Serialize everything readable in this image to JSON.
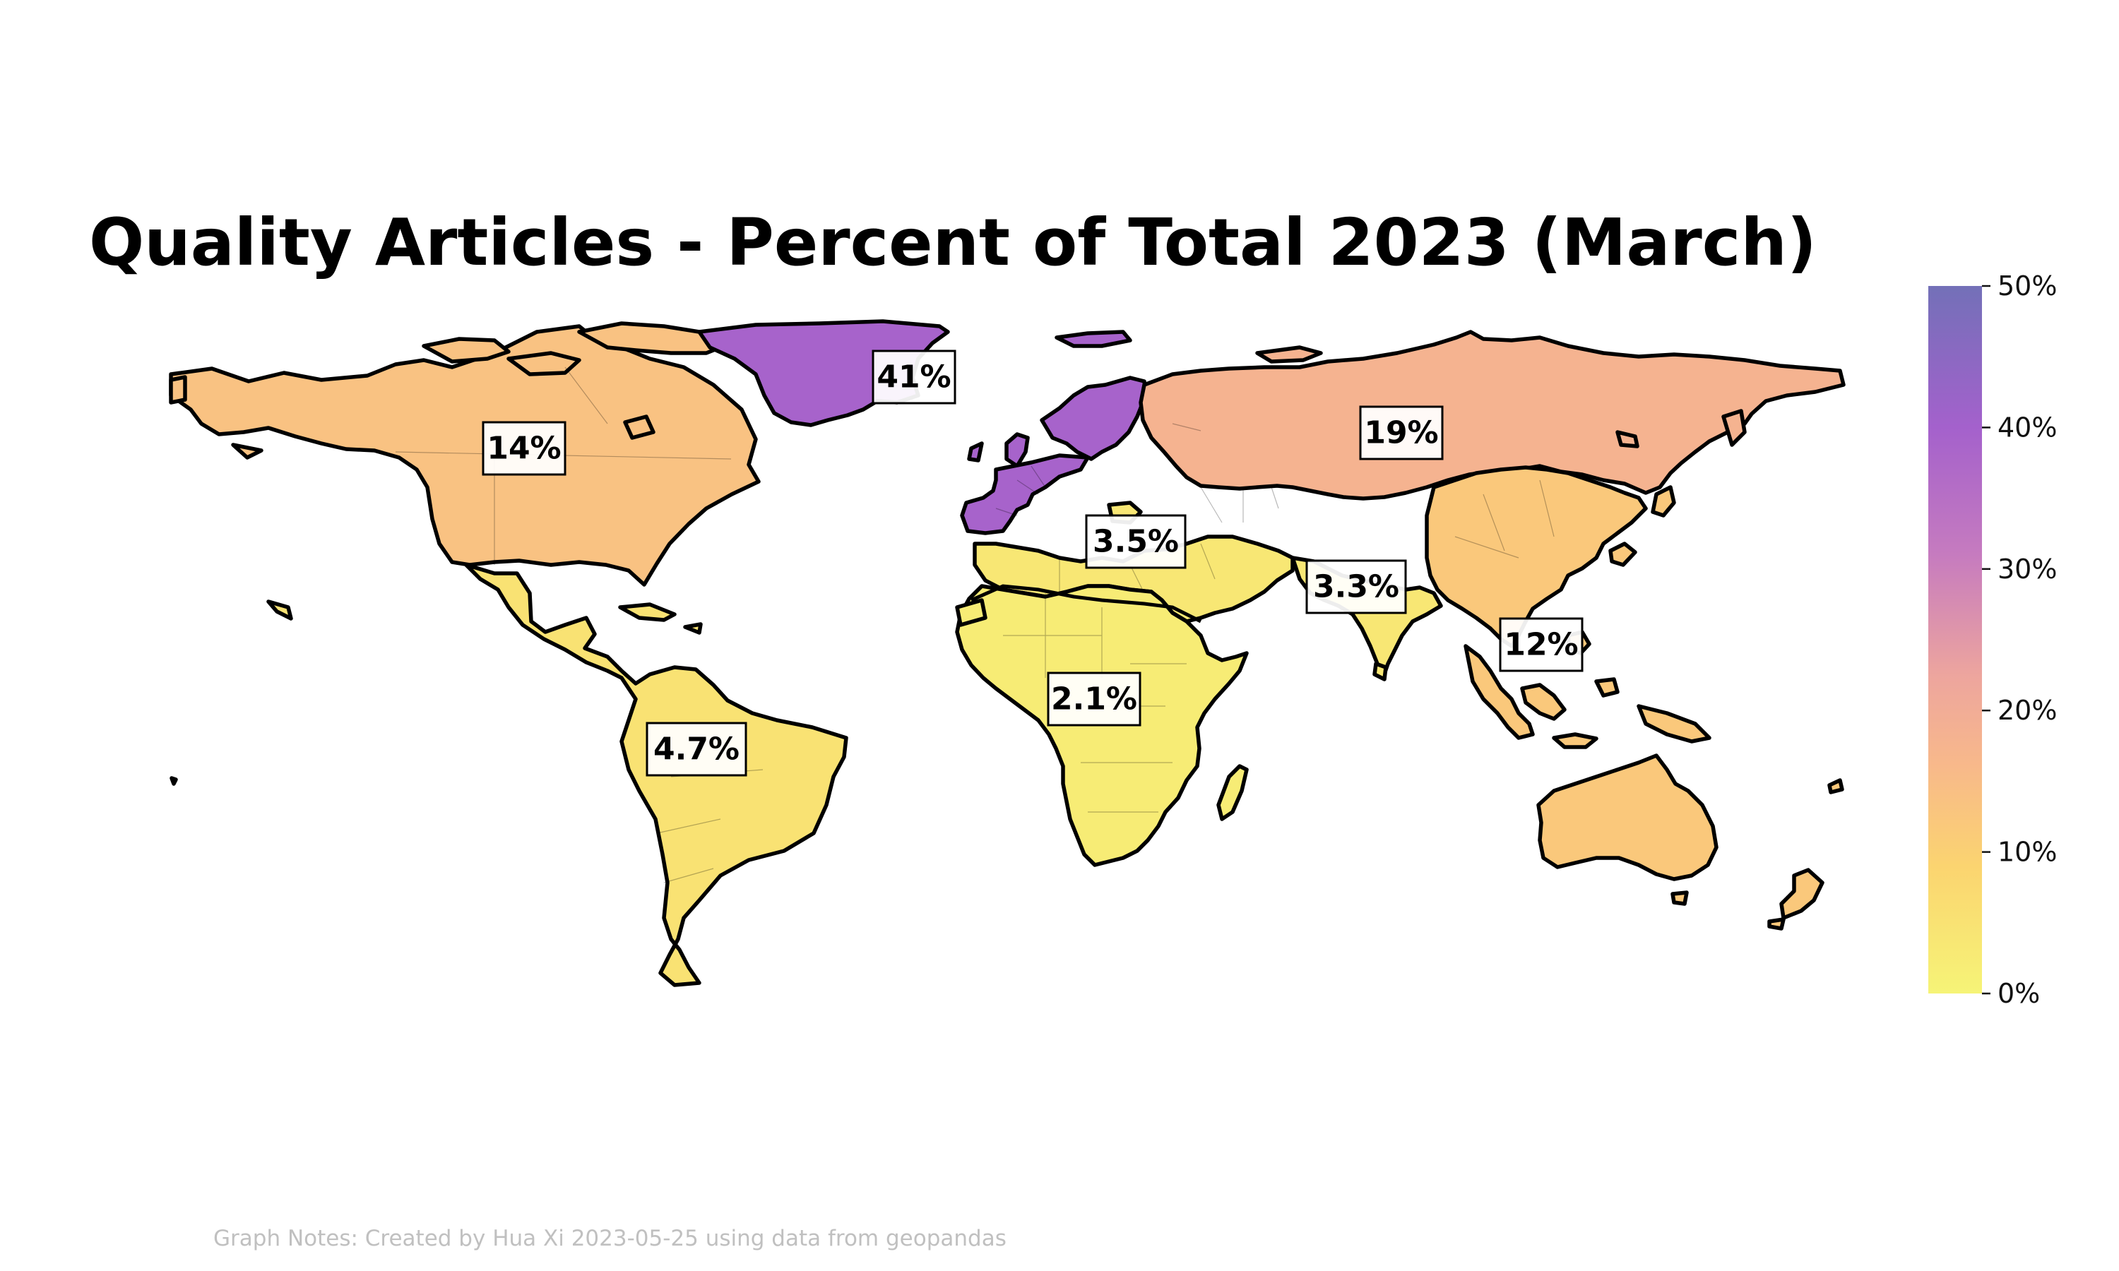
{
  "title": "Quality Articles - Percent of Total 2023 (March)",
  "notes": "Graph Notes: Created by Hua Xi 2023-05-25 using data from geopandas",
  "colors": {
    "scale": [
      "#f6f477",
      "#fbd470",
      "#f8b98a",
      "#eda59e",
      "#c67bbf",
      "#a461cc",
      "#7b6ab8"
    ],
    "borders": "#000000"
  },
  "colorbar": {
    "min": 0,
    "max": 50,
    "ticks": [
      "0%",
      "10%",
      "20%",
      "30%",
      "40%",
      "50%"
    ]
  },
  "chart_data": {
    "type": "choropleth",
    "regions": [
      {
        "id": "north-america",
        "label": "14%",
        "value": 14
      },
      {
        "id": "greenland-europe",
        "label": "41%",
        "value": 41
      },
      {
        "id": "russia",
        "label": "19%",
        "value": 19
      },
      {
        "id": "middle-east",
        "label": "3.5%",
        "value": 3.5
      },
      {
        "id": "south-asia",
        "label": "3.3%",
        "value": 3.3
      },
      {
        "id": "east-asia-oceania",
        "label": "12%",
        "value": 12
      },
      {
        "id": "africa",
        "label": "2.1%",
        "value": 2.1
      },
      {
        "id": "latin-america",
        "label": "4.7%",
        "value": 4.7
      }
    ]
  }
}
